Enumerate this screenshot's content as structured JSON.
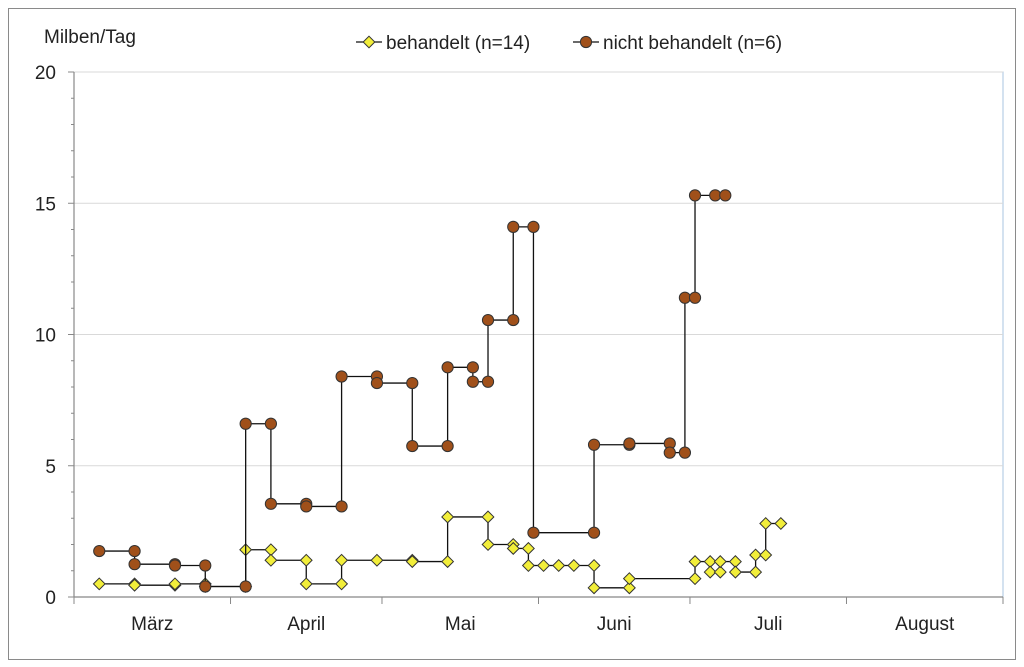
{
  "chart_data": {
    "type": "line",
    "ylabel": "Milben/Tag",
    "ylim": [
      0,
      20
    ],
    "yticks": [
      0,
      5,
      10,
      15,
      20
    ],
    "xlim": [
      0,
      184
    ],
    "month_labels": [
      "März",
      "April",
      "Mai",
      "Juni",
      "Juli",
      "August"
    ],
    "month_starts": [
      0,
      31,
      61,
      92,
      122,
      153,
      184
    ],
    "grid": "horizontal",
    "legend_position": "top",
    "series": [
      {
        "name": "behandelt (n=14)",
        "color": "#f2ee3a",
        "marker": "diamond",
        "x": [
          5,
          12,
          20,
          26,
          34,
          39,
          46,
          53,
          60,
          67,
          74,
          82,
          87,
          90,
          93,
          96,
          99,
          103,
          110,
          123,
          126,
          128,
          131,
          135,
          137,
          140
        ],
        "y": [
          0.5,
          0.45,
          0.5,
          0.4,
          1.8,
          1.4,
          0.5,
          1.4,
          1.4,
          1.35,
          3.05,
          2.0,
          1.85,
          1.2,
          1.2,
          1.2,
          1.2,
          0.35,
          0.7,
          1.35,
          0.95,
          1.35,
          0.95,
          1.6,
          2.8,
          2.8
        ],
        "y_prev": [
          null,
          0.5,
          0.45,
          0.5,
          0.4,
          1.8,
          1.4,
          0.5,
          1.4,
          1.4,
          1.35,
          3.05,
          2.0,
          1.85,
          1.2,
          1.2,
          1.2,
          1.2,
          0.35,
          0.7,
          1.35,
          0.95,
          1.35,
          0.95,
          1.6,
          2.8
        ]
      },
      {
        "name": "nicht behandelt (n=6)",
        "color": "#a0501a",
        "marker": "circle",
        "x": [
          5,
          12,
          20,
          26,
          34,
          39,
          46,
          53,
          60,
          67,
          74,
          79,
          82,
          87,
          91,
          103,
          110,
          118,
          121,
          123,
          127,
          129
        ],
        "y": [
          1.75,
          1.25,
          1.2,
          0.4,
          6.6,
          3.55,
          3.45,
          8.4,
          8.15,
          5.75,
          8.75,
          8.2,
          10.55,
          14.1,
          2.45,
          5.8,
          5.85,
          5.5,
          11.4,
          15.3,
          15.3,
          15.3
        ],
        "y_prev": [
          null,
          1.75,
          1.25,
          1.2,
          0.4,
          6.6,
          3.55,
          3.45,
          8.4,
          8.15,
          5.75,
          8.75,
          8.2,
          10.55,
          14.1,
          2.45,
          5.8,
          5.85,
          5.5,
          11.4,
          15.3,
          15.3
        ]
      }
    ]
  }
}
